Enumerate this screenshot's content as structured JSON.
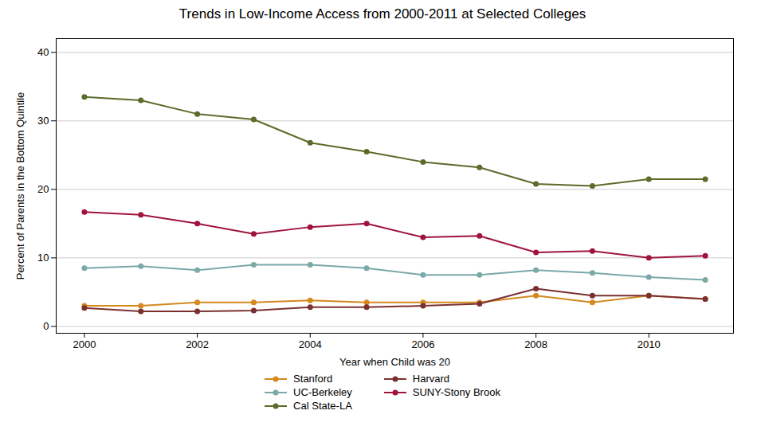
{
  "chart_data": {
    "type": "line",
    "title": "Trends in Low-Income Access from 2000-2011 at Selected Colleges",
    "x_label": "Year when Child was 20",
    "y_label": "Percent of Parents in the Bottom Quintile",
    "x": [
      2000,
      2001,
      2002,
      2003,
      2004,
      2005,
      2006,
      2007,
      2008,
      2009,
      2010,
      2011
    ],
    "series": [
      {
        "name": "Stanford",
        "color": "#D4881E",
        "values": [
          3.0,
          3.0,
          3.5,
          3.5,
          3.8,
          3.5,
          3.5,
          3.5,
          4.5,
          3.5,
          4.5,
          4.0
        ]
      },
      {
        "name": "Harvard",
        "color": "#7B3030",
        "values": [
          2.7,
          2.2,
          2.2,
          2.3,
          2.8,
          2.8,
          3.0,
          3.3,
          5.5,
          4.5,
          4.5,
          4.0
        ]
      },
      {
        "name": "UC-Berkeley",
        "color": "#7BA8A8",
        "values": [
          8.5,
          8.8,
          8.2,
          9.0,
          9.0,
          8.5,
          7.5,
          7.5,
          8.2,
          7.8,
          7.2,
          6.8
        ]
      },
      {
        "name": "SUNY-Stony Brook",
        "color": "#A0143C",
        "values": [
          16.7,
          16.3,
          15.0,
          13.5,
          14.5,
          15.0,
          13.0,
          13.2,
          10.8,
          11.0,
          10.0,
          10.3
        ]
      },
      {
        "name": "Cal State-LA",
        "color": "#5B6B2A",
        "values": [
          33.5,
          33.0,
          31.0,
          30.2,
          26.8,
          25.5,
          24.0,
          23.2,
          20.8,
          20.5,
          21.5,
          21.5
        ]
      }
    ],
    "xlim": [
      1999.5,
      2011.5
    ],
    "xticks": [
      2000,
      2002,
      2004,
      2006,
      2008,
      2010
    ],
    "ylim": [
      -1,
      42
    ],
    "yticks": [
      0,
      10,
      20,
      30,
      40
    ],
    "grid": true,
    "marker": "circle",
    "legend": "bottom"
  }
}
